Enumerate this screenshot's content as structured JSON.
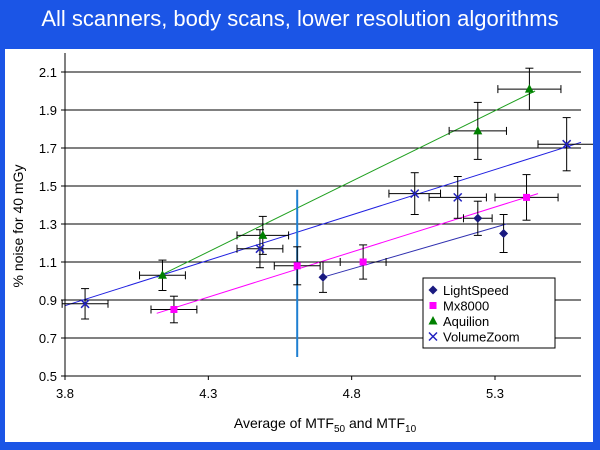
{
  "slide": {
    "title": "All scanners, body scans, lower resolution algorithms",
    "background_color": "#1b55e6"
  },
  "chart_data": {
    "type": "scatter",
    "title": "",
    "xlabel_main": "Average of MTF",
    "xlabel_sub1": "50",
    "xlabel_mid": " and MTF",
    "xlabel_sub2": "10",
    "ylabel": "% noise for 40 mGy",
    "xlim": [
      3.8,
      5.6
    ],
    "ylim": [
      0.5,
      2.2
    ],
    "x_ticks": [
      3.8,
      4.3,
      4.8,
      5.3
    ],
    "x_tick_labels": [
      "3.8",
      "4.3",
      "4.8",
      "5.3"
    ],
    "y_ticks": [
      0.5,
      0.7,
      0.9,
      1.1,
      1.3,
      1.5,
      1.7,
      1.9,
      2.1
    ],
    "y_tick_labels": [
      "0.5",
      "0.7",
      "0.9",
      "1.1",
      "1.3",
      "1.5",
      "1.7",
      "1.9",
      "2.1"
    ],
    "grid": "horizontal",
    "legend_position": "bottom-right",
    "vertical_marker_x": 4.61,
    "vertical_marker_range": [
      0.6,
      1.48
    ],
    "vertical_marker_color": "#1e7fd1",
    "series": [
      {
        "name": "LightSpeed",
        "marker": "diamond",
        "color": "#1a1a80",
        "trend_color": "#3030b0",
        "points": [
          {
            "x": 4.7,
            "y": 1.02,
            "xerr": 0,
            "yerr": 0.08
          },
          {
            "x": 5.24,
            "y": 1.33,
            "xerr": 0.05,
            "yerr": 0.09
          },
          {
            "x": 5.33,
            "y": 1.25,
            "xerr": 0,
            "yerr": 0.1
          }
        ],
        "trend": [
          [
            4.7,
            1.02
          ],
          [
            5.34,
            1.3
          ]
        ]
      },
      {
        "name": "Mx8000",
        "marker": "square",
        "color": "#ff00ff",
        "trend_color": "#ff00ff",
        "points": [
          {
            "x": 4.18,
            "y": 0.85,
            "xerr": 0.08,
            "yerr": 0.07
          },
          {
            "x": 4.61,
            "y": 1.08,
            "xerr": 0.08,
            "yerr": 0.1
          },
          {
            "x": 4.84,
            "y": 1.1,
            "xerr": 0.08,
            "yerr": 0.09
          },
          {
            "x": 5.41,
            "y": 1.44,
            "xerr": 0.11,
            "yerr": 0.12
          }
        ],
        "trend": [
          [
            4.12,
            0.83
          ],
          [
            5.45,
            1.46
          ]
        ]
      },
      {
        "name": "Aquilion",
        "marker": "triangle",
        "color": "#008000",
        "trend_color": "#20a020",
        "points": [
          {
            "x": 4.14,
            "y": 1.03,
            "xerr": 0.08,
            "yerr": 0.08
          },
          {
            "x": 4.49,
            "y": 1.24,
            "xerr": 0.09,
            "yerr": 0.1
          },
          {
            "x": 5.24,
            "y": 1.79,
            "xerr": 0.1,
            "yerr": 0.15
          },
          {
            "x": 5.42,
            "y": 2.01,
            "xerr": 0.11,
            "yerr": 0.11
          }
        ],
        "trend": [
          [
            4.12,
            1.02
          ],
          [
            5.44,
            2.0
          ]
        ]
      },
      {
        "name": "VolumeZoom",
        "marker": "x",
        "color": "#2020c0",
        "trend_color": "#2020e0",
        "points": [
          {
            "x": 3.87,
            "y": 0.88,
            "xerr": 0.08,
            "yerr": 0.08
          },
          {
            "x": 4.48,
            "y": 1.17,
            "xerr": 0.08,
            "yerr": 0.1
          },
          {
            "x": 5.02,
            "y": 1.46,
            "xerr": 0.09,
            "yerr": 0.11
          },
          {
            "x": 5.17,
            "y": 1.44,
            "xerr": 0.1,
            "yerr": 0.11
          },
          {
            "x": 5.55,
            "y": 1.72,
            "xerr": 0.1,
            "yerr": 0.14
          }
        ],
        "trend": [
          [
            3.8,
            0.87
          ],
          [
            5.6,
            1.73
          ]
        ]
      }
    ]
  }
}
